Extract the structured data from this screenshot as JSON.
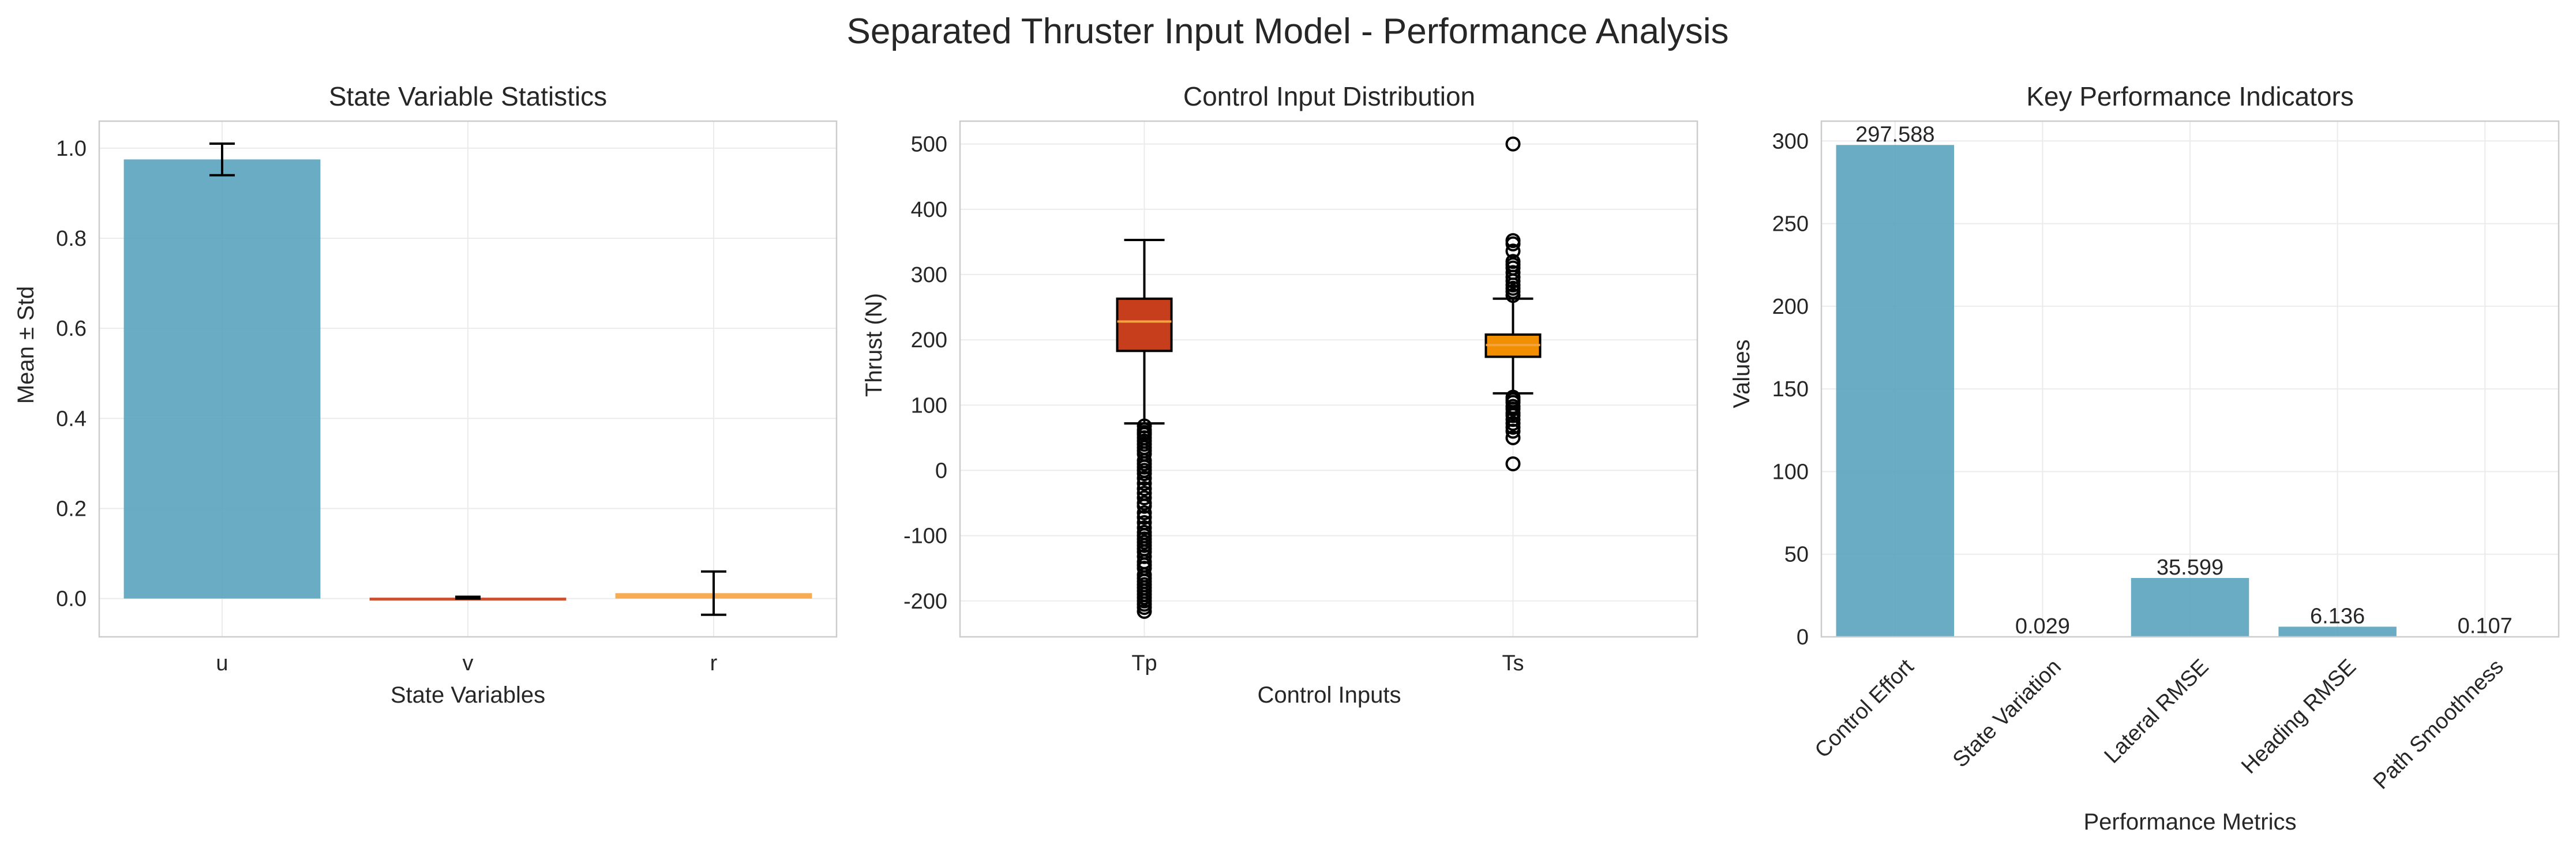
{
  "figure": {
    "title": "Separated Thruster Input Model - Performance Analysis"
  },
  "chart_data": [
    {
      "type": "bar",
      "title": "State Variable Statistics",
      "xlabel": "State Variables",
      "ylabel": "Mean ± Std",
      "categories": [
        "u",
        "v",
        "r"
      ],
      "values": [
        0.975,
        0.002,
        0.012
      ],
      "errors": [
        0.035,
        0.002,
        0.048
      ],
      "colors": [
        "#5BA3BF",
        "#C73E1D",
        "#F4A340"
      ],
      "ylim": [
        -0.085,
        1.06
      ],
      "yticks": [
        0.0,
        0.2,
        0.4,
        0.6,
        0.8,
        1.0
      ],
      "yticklabels": [
        "0.0",
        "0.2",
        "0.4",
        "0.6",
        "0.8",
        "1.0"
      ],
      "grid": true
    },
    {
      "type": "box",
      "title": "Control Input Distribution",
      "xlabel": "Control Inputs",
      "ylabel": "Thrust (N)",
      "categories": [
        "Tp",
        "Ts"
      ],
      "colors": [
        "#C73E1D",
        "#F18F01"
      ],
      "boxes": [
        {
          "name": "Tp",
          "q1": 183,
          "median": 228,
          "q3": 263,
          "whisker_low": 72,
          "whisker_high": 353,
          "outliers": [
            68,
            62,
            58,
            55,
            50,
            45,
            40,
            35,
            30,
            25,
            15,
            10,
            5,
            0,
            -5,
            -12,
            -20,
            -28,
            -35,
            -42,
            -50,
            -55,
            -65,
            -72,
            -80,
            -88,
            -95,
            -100,
            -105,
            -110,
            -115,
            -120,
            -125,
            -132,
            -140,
            -145,
            -150,
            -160,
            -165,
            -170,
            -175,
            -180,
            -185,
            -190,
            -195,
            -200,
            -205,
            -210,
            -216
          ]
        },
        {
          "name": "Ts",
          "q1": 174,
          "median": 192,
          "q3": 208,
          "whisker_low": 118,
          "whisker_high": 263,
          "outliers": [
            500,
            352,
            347,
            336,
            320,
            315,
            310,
            303,
            296,
            290,
            284,
            279,
            274,
            268,
            112,
            108,
            104,
            98,
            94,
            88,
            84,
            78,
            72,
            66,
            60,
            50,
            10
          ]
        }
      ],
      "ylim": [
        -255,
        535
      ],
      "yticks": [
        -200,
        -100,
        0,
        100,
        200,
        300,
        400,
        500
      ],
      "yticklabels": [
        "-200",
        "-100",
        "0",
        "100",
        "200",
        "300",
        "400",
        "500"
      ],
      "grid": true
    },
    {
      "type": "bar",
      "title": "Key Performance Indicators",
      "xlabel": "Performance Metrics",
      "ylabel": "Values",
      "categories": [
        "Control Effort",
        "State Variation",
        "Lateral RMSE",
        "Heading RMSE",
        "Path Smoothness"
      ],
      "values": [
        297.588,
        0.029,
        35.599,
        6.136,
        0.107
      ],
      "value_labels": [
        "297.588",
        "0.029",
        "35.599",
        "6.136",
        "0.107"
      ],
      "color": "#5BA3BF",
      "ylim": [
        0,
        312
      ],
      "yticks": [
        0,
        50,
        100,
        150,
        200,
        250,
        300
      ],
      "yticklabels": [
        "0",
        "50",
        "100",
        "150",
        "200",
        "250",
        "300"
      ],
      "grid": true
    }
  ]
}
